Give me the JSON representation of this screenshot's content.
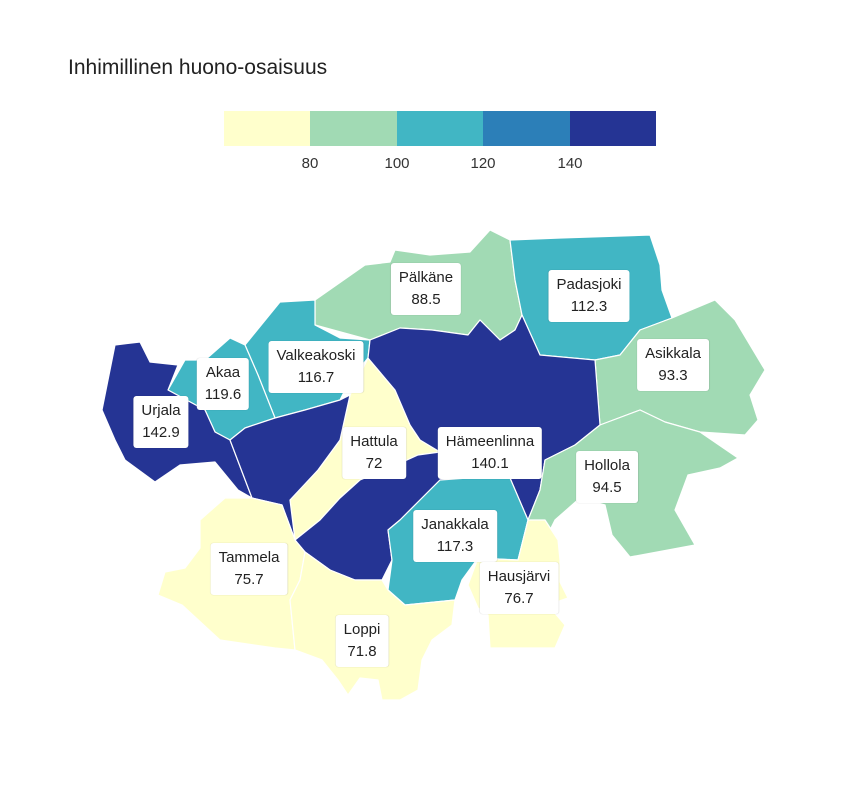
{
  "title": "Inhimillinen huono-osaisuus",
  "legend": {
    "colors": [
      "#ffffcc",
      "#a1dab4",
      "#41b6c4",
      "#2c7fb8",
      "#253494"
    ],
    "ticks": [
      "80",
      "100",
      "120",
      "140"
    ]
  },
  "regions": [
    {
      "id": "palkane",
      "name": "Pälkäne",
      "value": "88.5",
      "color": "#a1dab4"
    },
    {
      "id": "padasjoki",
      "name": "Padasjoki",
      "value": "112.3",
      "color": "#41b6c4"
    },
    {
      "id": "asikkala",
      "name": "Asikkala",
      "value": "93.3",
      "color": "#a1dab4"
    },
    {
      "id": "valkeakoski",
      "name": "Valkeakoski",
      "value": "116.7",
      "color": "#41b6c4"
    },
    {
      "id": "akaa",
      "name": "Akaa",
      "value": "119.6",
      "color": "#41b6c4"
    },
    {
      "id": "urjala",
      "name": "Urjala",
      "value": "142.9",
      "color": "#253494"
    },
    {
      "id": "hattula",
      "name": "Hattula",
      "value": "72",
      "color": "#ffffcc"
    },
    {
      "id": "hameenlinna",
      "name": "Hämeenlinna",
      "value": "140.1",
      "color": "#253494"
    },
    {
      "id": "hollola",
      "name": "Hollola",
      "value": "94.5",
      "color": "#a1dab4"
    },
    {
      "id": "janakkala",
      "name": "Janakkala",
      "value": "117.3",
      "color": "#41b6c4"
    },
    {
      "id": "tammela",
      "name": "Tammela",
      "value": "75.7",
      "color": "#ffffcc"
    },
    {
      "id": "hausjarvi",
      "name": "Hausjärvi",
      "value": "76.7",
      "color": "#ffffcc"
    },
    {
      "id": "loppi",
      "name": "Loppi",
      "value": "71.8",
      "color": "#ffffcc"
    }
  ]
}
